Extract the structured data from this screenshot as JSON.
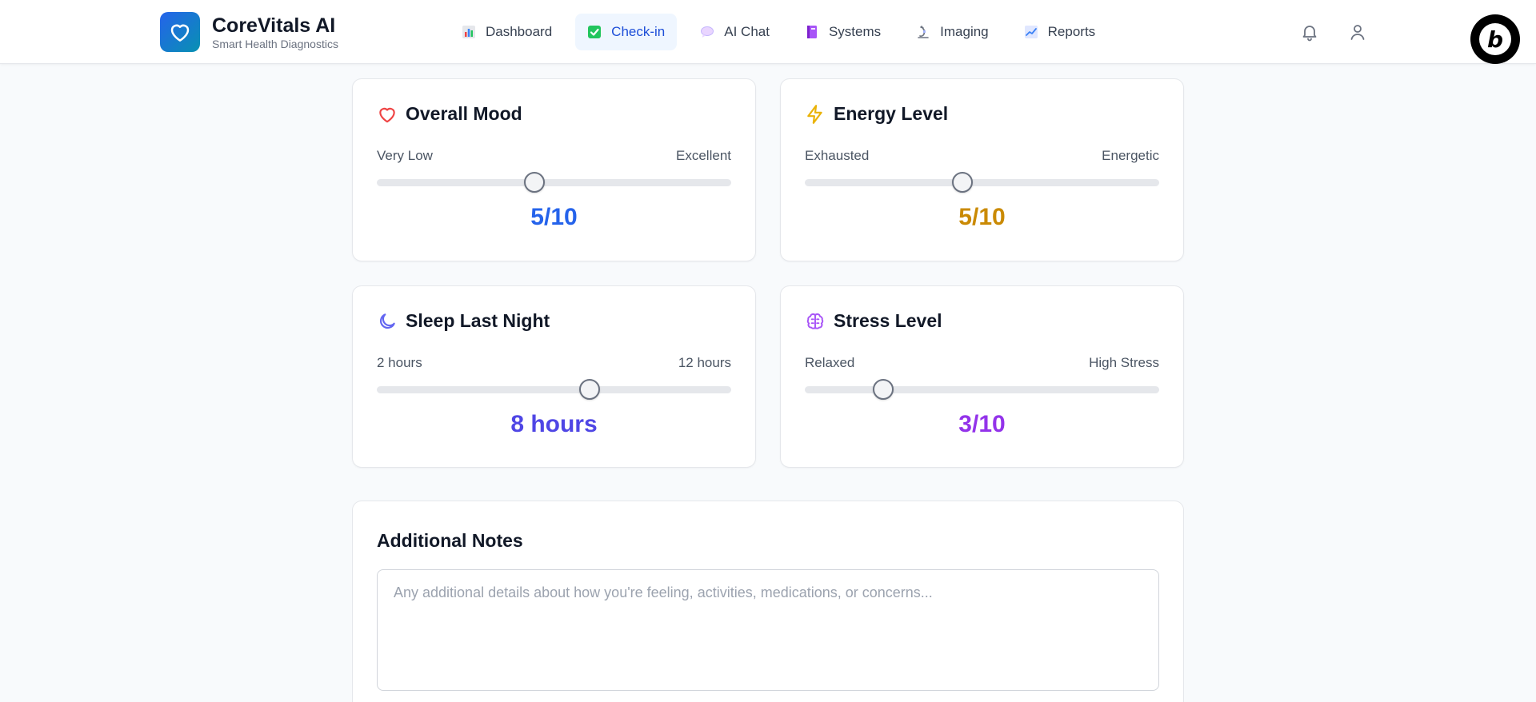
{
  "brand": {
    "title": "CoreVitals AI",
    "subtitle": "Smart Health Diagnostics"
  },
  "nav": [
    {
      "label": "Dashboard",
      "icon": "bar-chart-icon"
    },
    {
      "label": "Check-in",
      "icon": "checkbox-icon",
      "active": true
    },
    {
      "label": "AI Chat",
      "icon": "speech-bubble-icon"
    },
    {
      "label": "Systems",
      "icon": "notebook-icon"
    },
    {
      "label": "Imaging",
      "icon": "microscope-icon"
    },
    {
      "label": "Reports",
      "icon": "line-chart-icon"
    }
  ],
  "header_icons": [
    "bell-icon",
    "user-icon",
    "bolt-badge-icon"
  ],
  "cards": {
    "mood": {
      "title": "Overall Mood",
      "min_label": "Very Low",
      "max_label": "Excellent",
      "value_text": "5/10",
      "level": 0.444,
      "color": "#2563eb",
      "icon": "heart-icon"
    },
    "energy": {
      "title": "Energy Level",
      "min_label": "Exhausted",
      "max_label": "Energetic",
      "value_text": "5/10",
      "level": 0.444,
      "color": "#ca8a04",
      "icon": "lightning-icon"
    },
    "sleep": {
      "title": "Sleep Last Night",
      "min_label": "2 hours",
      "max_label": "12 hours",
      "value_text": "8 hours",
      "level": 0.6,
      "color": "#4f46e5",
      "icon": "moon-icon"
    },
    "stress": {
      "title": "Stress Level",
      "min_label": "Relaxed",
      "max_label": "High Stress",
      "value_text": "3/10",
      "level": 0.222,
      "color": "#9333ea",
      "icon": "brain-icon"
    }
  },
  "notes": {
    "title": "Additional Notes",
    "placeholder": "Any additional details about how you're feeling, activities, medications, or concerns..."
  }
}
